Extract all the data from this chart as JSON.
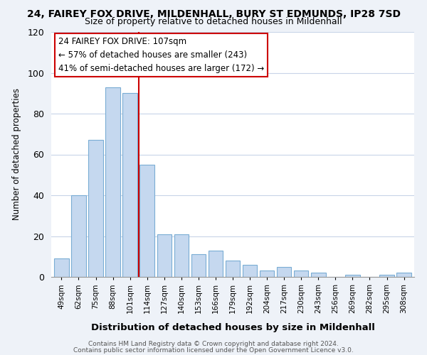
{
  "title_line1": "24, FAIREY FOX DRIVE, MILDENHALL, BURY ST EDMUNDS, IP28 7SD",
  "title_line2": "Size of property relative to detached houses in Mildenhall",
  "xlabel": "Distribution of detached houses by size in Mildenhall",
  "ylabel": "Number of detached properties",
  "bar_labels": [
    "49sqm",
    "62sqm",
    "75sqm",
    "88sqm",
    "101sqm",
    "114sqm",
    "127sqm",
    "140sqm",
    "153sqm",
    "166sqm",
    "179sqm",
    "192sqm",
    "204sqm",
    "217sqm",
    "230sqm",
    "243sqm",
    "256sqm",
    "269sqm",
    "282sqm",
    "295sqm",
    "308sqm"
  ],
  "bar_values": [
    9,
    40,
    67,
    93,
    90,
    55,
    21,
    21,
    11,
    13,
    8,
    6,
    3,
    5,
    3,
    2,
    0,
    1,
    0,
    1,
    2
  ],
  "bar_color": "#c5d8ef",
  "bar_edge_color": "#7aadd4",
  "redline_index": 5,
  "ylim": [
    0,
    120
  ],
  "yticks": [
    0,
    20,
    40,
    60,
    80,
    100,
    120
  ],
  "annotation_title": "24 FAIREY FOX DRIVE: 107sqm",
  "annotation_line1": "← 57% of detached houses are smaller (243)",
  "annotation_line2": "41% of semi-detached houses are larger (172) →",
  "annotation_box_color": "#ffffff",
  "annotation_box_edge": "#cc0000",
  "footer_line1": "Contains HM Land Registry data © Crown copyright and database right 2024.",
  "footer_line2": "Contains public sector information licensed under the Open Government Licence v3.0.",
  "background_color": "#eef2f8",
  "plot_bg_color": "#ffffff",
  "grid_color": "#c8d4e8"
}
